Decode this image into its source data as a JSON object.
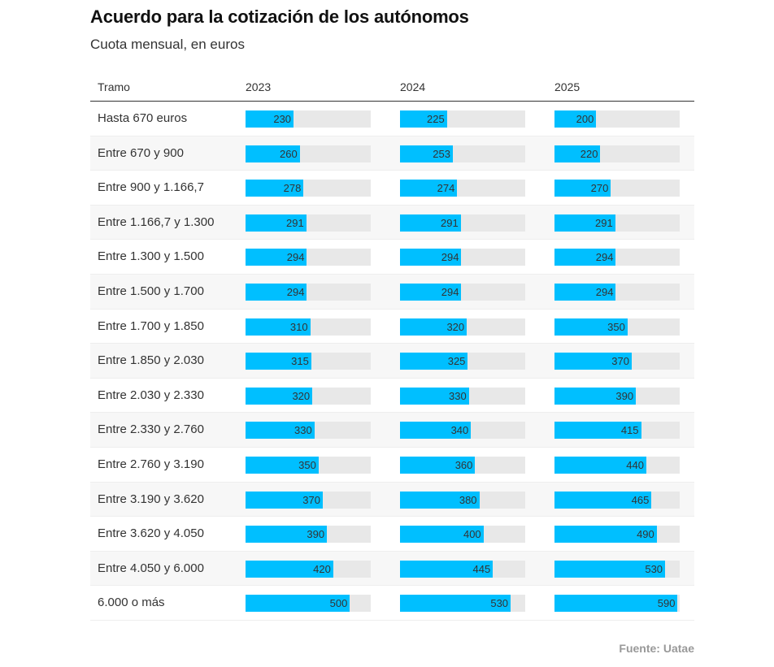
{
  "chart_data": {
    "type": "table",
    "title": "Acuerdo para la cotización de los autónomos",
    "subtitle": "Cuota mensual, en euros",
    "row_header": "Tramo",
    "columns": [
      "2023",
      "2024",
      "2025"
    ],
    "bar_scale_max": 600,
    "colors": {
      "bar": "#00bfff",
      "track": "#e8e8e8"
    },
    "rows": [
      {
        "label": "Hasta 670 euros",
        "values": [
          230,
          225,
          200
        ]
      },
      {
        "label": "Entre 670 y 900",
        "values": [
          260,
          253,
          220
        ]
      },
      {
        "label": "Entre 900 y 1.166,7",
        "values": [
          278,
          274,
          270
        ]
      },
      {
        "label": "Entre 1.166,7 y 1.300",
        "values": [
          291,
          291,
          291
        ]
      },
      {
        "label": "Entre 1.300 y 1.500",
        "values": [
          294,
          294,
          294
        ]
      },
      {
        "label": "Entre 1.500 y 1.700",
        "values": [
          294,
          294,
          294
        ]
      },
      {
        "label": "Entre 1.700 y 1.850",
        "values": [
          310,
          320,
          350
        ]
      },
      {
        "label": "Entre 1.850 y 2.030",
        "values": [
          315,
          325,
          370
        ]
      },
      {
        "label": "Entre 2.030 y 2.330",
        "values": [
          320,
          330,
          390
        ]
      },
      {
        "label": "Entre 2.330 y 2.760",
        "values": [
          330,
          340,
          415
        ]
      },
      {
        "label": "Entre 2.760 y 3.190",
        "values": [
          350,
          360,
          440
        ]
      },
      {
        "label": "Entre 3.190 y 3.620",
        "values": [
          370,
          380,
          465
        ]
      },
      {
        "label": "Entre 3.620 y 4.050",
        "values": [
          390,
          400,
          490
        ]
      },
      {
        "label": "Entre 4.050 y 6.000",
        "values": [
          420,
          445,
          530
        ]
      },
      {
        "label": "6.000 o más",
        "values": [
          500,
          530,
          590
        ]
      }
    ],
    "source": "Fuente: Uatae"
  }
}
